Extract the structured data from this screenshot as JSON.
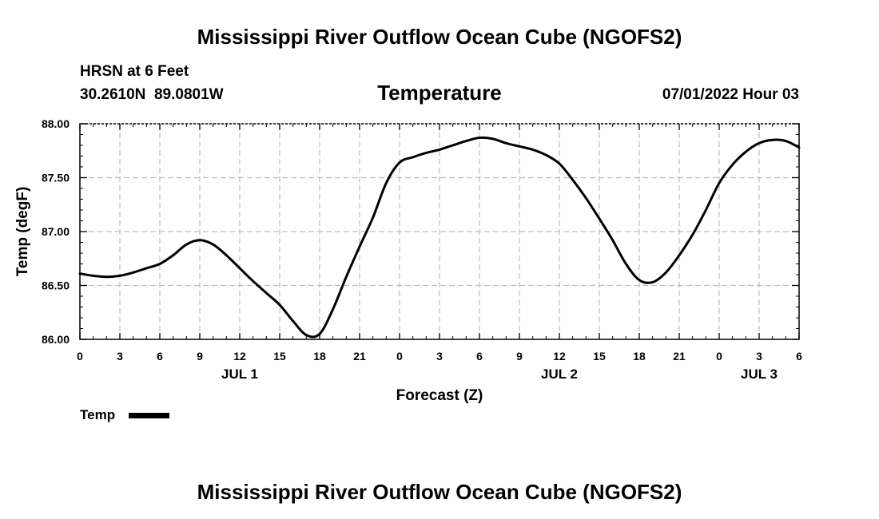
{
  "header": {
    "title": "Mississippi River Outflow Ocean Cube (NGOFS2)",
    "station": "HRSN at 6 Feet",
    "coords": "30.2610N  89.0801W",
    "plot_title": "Temperature",
    "datetime": "07/01/2022 Hour 03"
  },
  "footer": {
    "title": "Mississippi River Outflow Ocean Cube (NGOFS2)"
  },
  "legend": {
    "label": "Temp"
  },
  "chart_data": {
    "type": "line",
    "title": "Temperature",
    "xlabel": "Forecast (Z)",
    "ylabel": "Temp (degF)",
    "xlim": [
      0,
      54
    ],
    "ylim": [
      86.0,
      88.0
    ],
    "grid": true,
    "y_ticks": [
      86.0,
      86.5,
      87.0,
      87.5,
      88.0
    ],
    "y_tick_labels": [
      "86.00",
      "86.50",
      "87.00",
      "87.50",
      "88.00"
    ],
    "x_ticks": [
      0,
      3,
      6,
      9,
      12,
      15,
      18,
      21,
      24,
      27,
      30,
      33,
      36,
      39,
      42,
      45,
      48,
      51,
      54
    ],
    "x_tick_labels": [
      "0",
      "3",
      "6",
      "9",
      "12",
      "15",
      "18",
      "21",
      "0",
      "3",
      "6",
      "9",
      "12",
      "15",
      "18",
      "21",
      "0",
      "3",
      "6"
    ],
    "day_labels": [
      {
        "label": "JUL 1",
        "x": 12
      },
      {
        "label": "JUL 2",
        "x": 36
      },
      {
        "label": "JUL 3",
        "x": 51
      }
    ],
    "legend_position": "bottom-left",
    "series": [
      {
        "name": "Temp",
        "color": "#000000",
        "x": [
          0,
          1,
          2,
          3,
          4,
          5,
          6,
          7,
          8,
          9,
          10,
          11,
          12,
          13,
          14,
          15,
          16,
          17,
          18,
          19,
          20,
          21,
          22,
          23,
          24,
          25,
          26,
          27,
          28,
          29,
          30,
          31,
          32,
          33,
          34,
          35,
          36,
          37,
          38,
          39,
          40,
          41,
          42,
          43,
          44,
          45,
          46,
          47,
          48,
          49,
          50,
          51,
          52,
          53,
          54
        ],
        "values": [
          86.61,
          86.59,
          86.58,
          86.59,
          86.62,
          86.66,
          86.7,
          86.78,
          86.88,
          86.92,
          86.88,
          86.78,
          86.66,
          86.54,
          86.43,
          86.32,
          86.17,
          86.04,
          86.05,
          86.28,
          86.58,
          86.86,
          87.13,
          87.45,
          87.64,
          87.69,
          87.73,
          87.76,
          87.8,
          87.84,
          87.87,
          87.86,
          87.82,
          87.79,
          87.76,
          87.71,
          87.63,
          87.48,
          87.31,
          87.12,
          86.92,
          86.7,
          86.55,
          86.53,
          86.62,
          86.78,
          86.97,
          87.2,
          87.45,
          87.62,
          87.74,
          87.82,
          87.85,
          87.84,
          87.78
        ]
      }
    ]
  }
}
